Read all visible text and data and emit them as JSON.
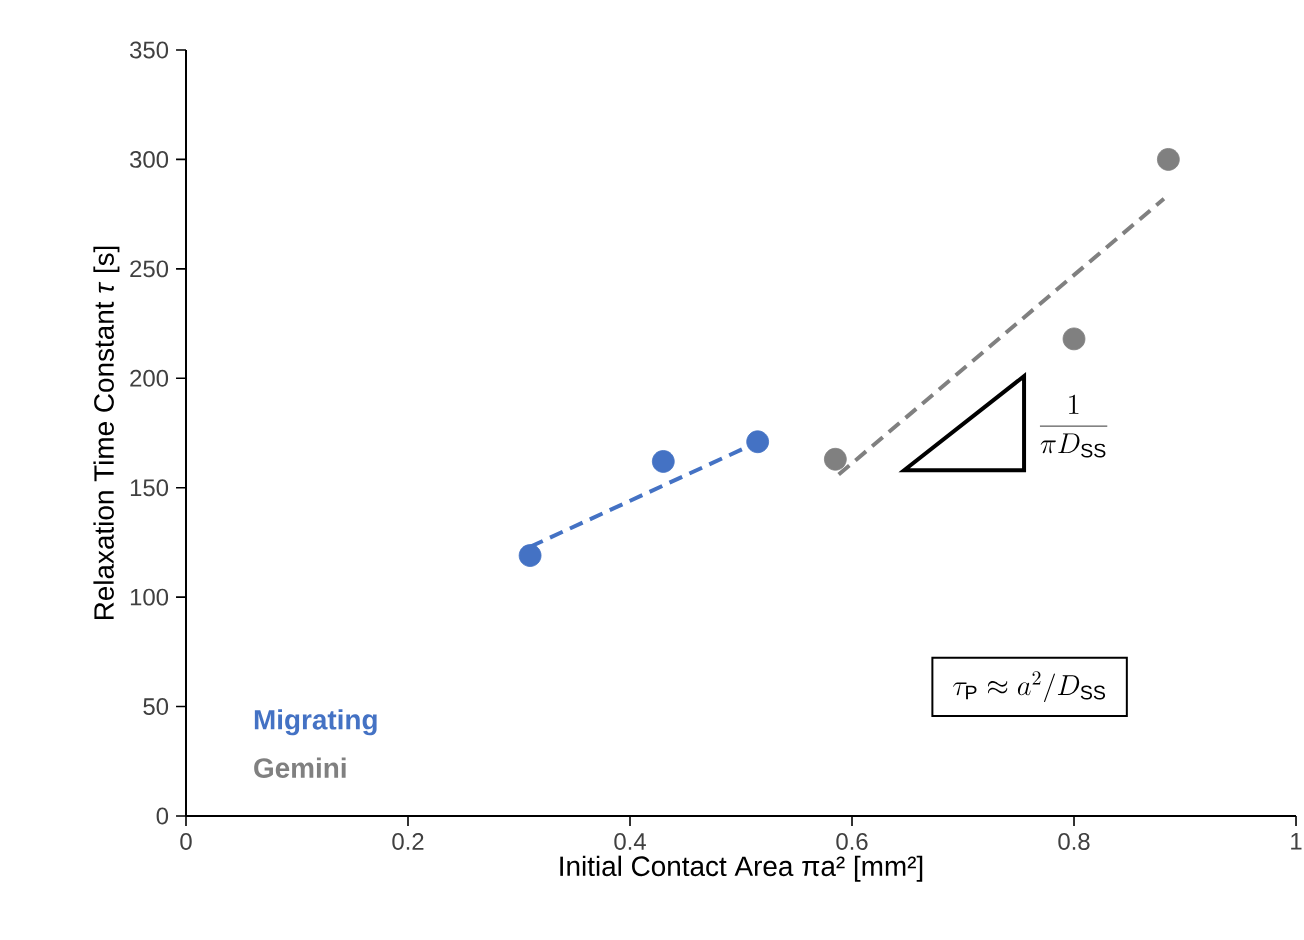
{
  "chart_data": {
    "type": "scatter",
    "xlabel": "Initial Contact Area πa² [mm²]",
    "ylabel": "Relaxation Time Constant *τ* [s]",
    "xlim": [
      0,
      1
    ],
    "xticks": [
      0,
      0.2,
      0.4,
      0.6,
      0.8,
      1
    ],
    "ylim": [
      0,
      350
    ],
    "yticks": [
      0,
      50,
      100,
      150,
      200,
      250,
      300,
      350
    ],
    "grid": false,
    "legend": "bottom left",
    "marker": "circle",
    "series": [
      {
        "name": "Migrating",
        "color": "#4472c4",
        "x": [
          0.31,
          0.43,
          0.515
        ],
        "values": [
          119,
          162,
          171
        ]
      },
      {
        "name": "Gemini",
        "color": "#808080",
        "x": [
          0.585,
          0.8,
          0.885
        ],
        "values": [
          163,
          218,
          300
        ]
      },
      {
        "type": "line",
        "line_style": "dashed",
        "marker": "none",
        "color": "#4472c4",
        "x": [
          0.31,
          0.52
        ],
        "values": [
          123,
          172
        ]
      },
      {
        "type": "line",
        "line_style": "dashed",
        "marker": "none",
        "color": "#808080",
        "x": [
          0.588,
          0.881
        ],
        "values": [
          156,
          282
        ]
      }
    ],
    "annotations": [
      "\\frac{1}{\\pi D_{\\mathrm{SS}}}",
      "\\tau_{\\mathrm{P}} \\approx a^{2} / D_{\\mathrm{SS}}"
    ]
  }
}
